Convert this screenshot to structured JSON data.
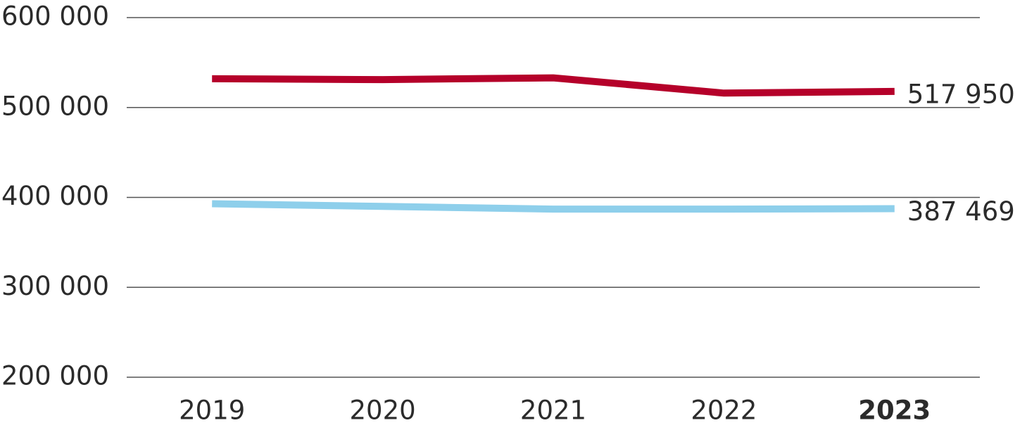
{
  "chart_data": {
    "type": "line",
    "categories": [
      "2019",
      "2020",
      "2021",
      "2022",
      "2023"
    ],
    "series": [
      {
        "color": "#b5002a",
        "values": [
          532000,
          531000,
          533000,
          516000,
          517950
        ],
        "value_labels": [
          null,
          null,
          null,
          null,
          "517 950"
        ]
      },
      {
        "color": "#8ecfeb",
        "values": [
          393000,
          390000,
          387000,
          387000,
          387469
        ],
        "value_labels": [
          null,
          null,
          null,
          null,
          "387 469"
        ]
      }
    ],
    "ylim": [
      200000,
      600000
    ],
    "yticks": [
      {
        "value": 200000,
        "label": "200 000"
      },
      {
        "value": 300000,
        "label": "300 000"
      },
      {
        "value": 400000,
        "label": "400 000"
      },
      {
        "value": 500000,
        "label": "500 000"
      },
      {
        "value": 600000,
        "label": "600 000"
      }
    ],
    "grid": true
  }
}
